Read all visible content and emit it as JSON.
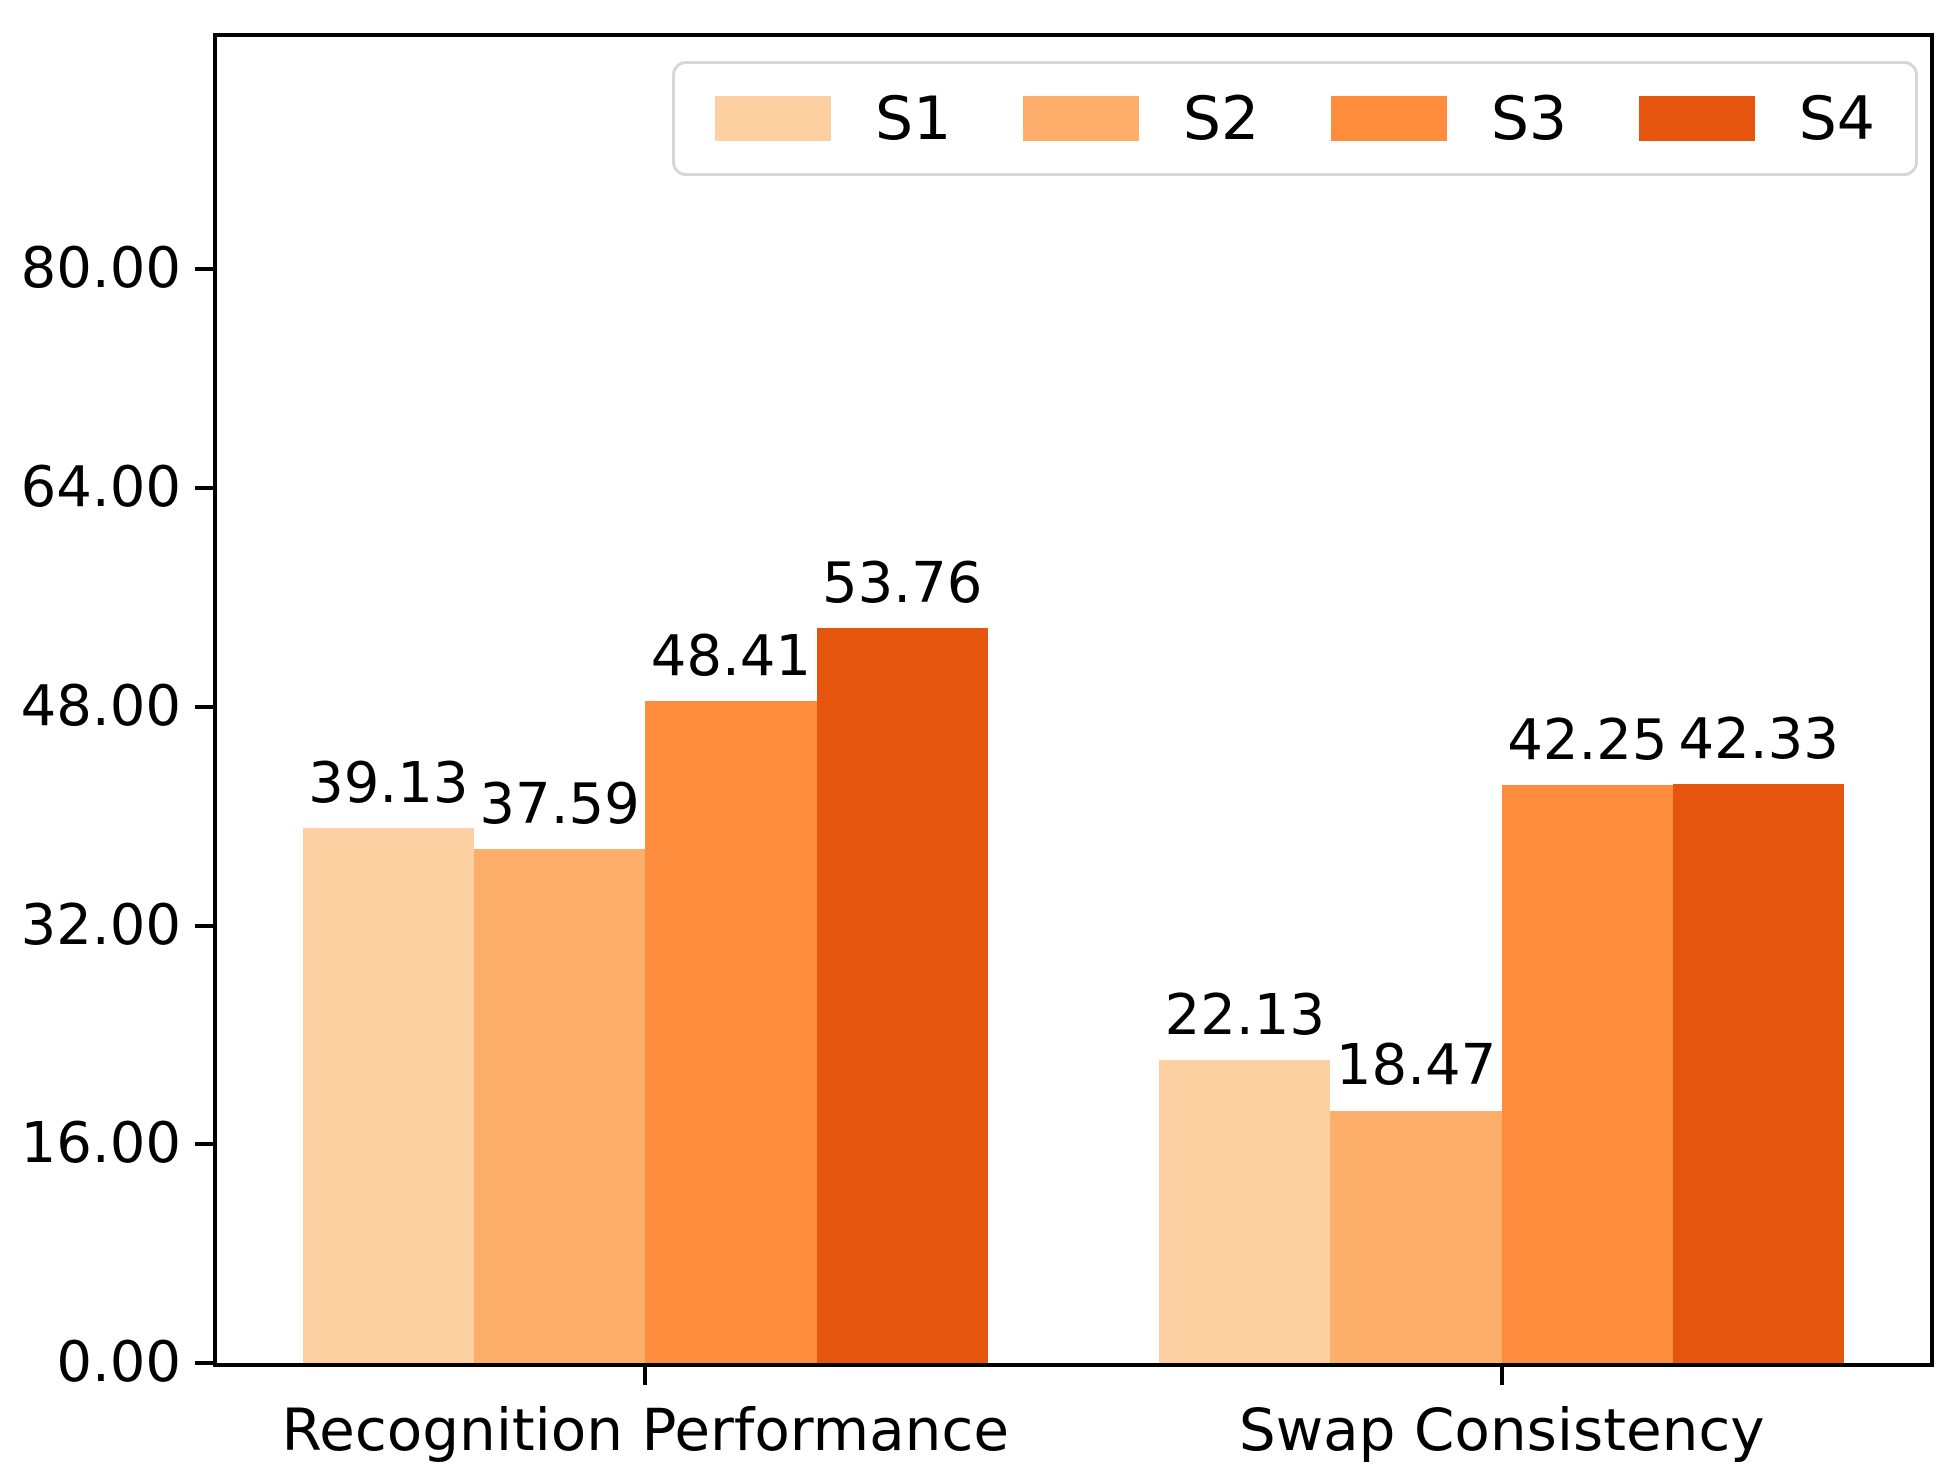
{
  "chart_data": {
    "type": "bar",
    "title": "",
    "xlabel": "",
    "ylabel": "",
    "categories": [
      "Recognition Performance",
      "Swap Consistency"
    ],
    "series": [
      {
        "name": "S1",
        "color": "#FDD0A2",
        "values": [
          39.13,
          22.13
        ]
      },
      {
        "name": "S2",
        "color": "#FDAE6B",
        "values": [
          37.59,
          18.47
        ]
      },
      {
        "name": "S3",
        "color": "#FD8D3C",
        "values": [
          48.41,
          42.25
        ]
      },
      {
        "name": "S4",
        "color": "#E6550D",
        "values": [
          53.76,
          42.33
        ]
      }
    ],
    "ylim": [
      0,
      97
    ],
    "yticks": [
      {
        "value": 0,
        "label": "0.00"
      },
      {
        "value": 16,
        "label": "16.00"
      },
      {
        "value": 32,
        "label": "32.00"
      },
      {
        "value": 48,
        "label": "48.00"
      },
      {
        "value": 64,
        "label": "64.00"
      },
      {
        "value": 80,
        "label": "80.00"
      }
    ],
    "bar_labels_decimals": 2,
    "grid": false,
    "legend_position": "upper center",
    "colors": {
      "axis": "#000000",
      "text": "#000000",
      "legend_border": "#D6D6D6",
      "background": "#FFFFFF"
    }
  }
}
